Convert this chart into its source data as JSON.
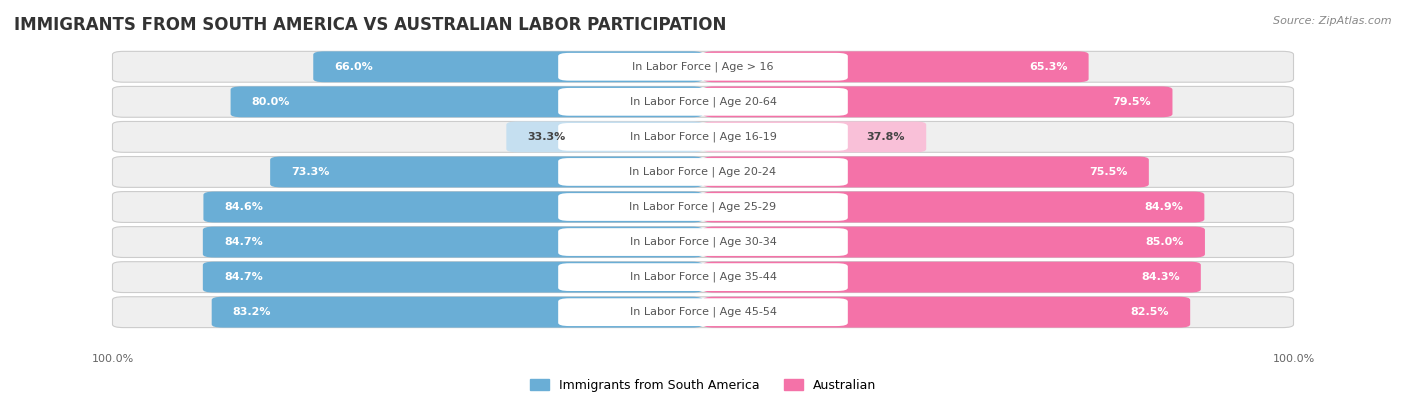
{
  "title": "IMMIGRANTS FROM SOUTH AMERICA VS AUSTRALIAN LABOR PARTICIPATION",
  "source": "Source: ZipAtlas.com",
  "categories": [
    "In Labor Force | Age > 16",
    "In Labor Force | Age 20-64",
    "In Labor Force | Age 16-19",
    "In Labor Force | Age 20-24",
    "In Labor Force | Age 25-29",
    "In Labor Force | Age 30-34",
    "In Labor Force | Age 35-44",
    "In Labor Force | Age 45-54"
  ],
  "south_america_values": [
    66.0,
    80.0,
    33.3,
    73.3,
    84.6,
    84.7,
    84.7,
    83.2
  ],
  "australian_values": [
    65.3,
    79.5,
    37.8,
    75.5,
    84.9,
    85.0,
    84.3,
    82.5
  ],
  "south_america_color": "#6aaed6",
  "australian_color": "#f472a8",
  "south_america_color_light": "#c5dff0",
  "australian_color_light": "#f9c0d8",
  "row_bg_color": "#efefef",
  "row_bg_light": "#f8f8f8",
  "max_value": 100.0,
  "legend_sa": "Immigrants from South America",
  "legend_au": "Australian",
  "title_fontsize": 12,
  "label_fontsize": 8,
  "value_fontsize": 8,
  "footer_fontsize": 8,
  "source_fontsize": 8
}
